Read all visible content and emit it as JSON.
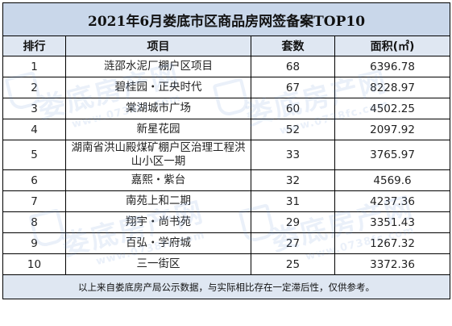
{
  "title": "2021年6月娄底市区商品房网签备案TOP10",
  "columns": [
    "排行",
    "项目",
    "套数",
    "面积(㎡)"
  ],
  "rows": [
    {
      "rank": "1",
      "project": "涟邵水泥厂棚户区项目",
      "units": "68",
      "area": "6396.78"
    },
    {
      "rank": "2",
      "project": "碧桂园・正央时代",
      "units": "67",
      "area": "8228.97"
    },
    {
      "rank": "3",
      "project": "棠湖城市广场",
      "units": "60",
      "area": "4502.25"
    },
    {
      "rank": "4",
      "project": "新星花园",
      "units": "52",
      "area": "2097.92"
    },
    {
      "rank": "5",
      "project": "湖南省洪山殿煤矿棚户区治理工程洪山小区一期",
      "units": "33",
      "area": "3765.97"
    },
    {
      "rank": "6",
      "project": "嘉熙・紫台",
      "units": "32",
      "area": "4569.6"
    },
    {
      "rank": "7",
      "project": "南苑上和二期",
      "units": "31",
      "area": "4237.36"
    },
    {
      "rank": "8",
      "project": "翔宇・尚书苑",
      "units": "29",
      "area": "3351.43"
    },
    {
      "rank": "9",
      "project": "百弘・学府城",
      "units": "27",
      "area": "1267.32"
    },
    {
      "rank": "10",
      "project": "三一街区",
      "units": "25",
      "area": "3372.36"
    }
  ],
  "footer": "以上来自娄底房产局公示数据，与实际相比存在一定滞后性，仅供参考。",
  "watermark": {
    "text": "娄底房产网",
    "sub": "www.0738fc.com"
  },
  "colors": {
    "title_bg": "#c9d7ea",
    "header_bg": "#dfe7f2",
    "footer_bg": "#dfe7f2",
    "border": "#000000"
  }
}
